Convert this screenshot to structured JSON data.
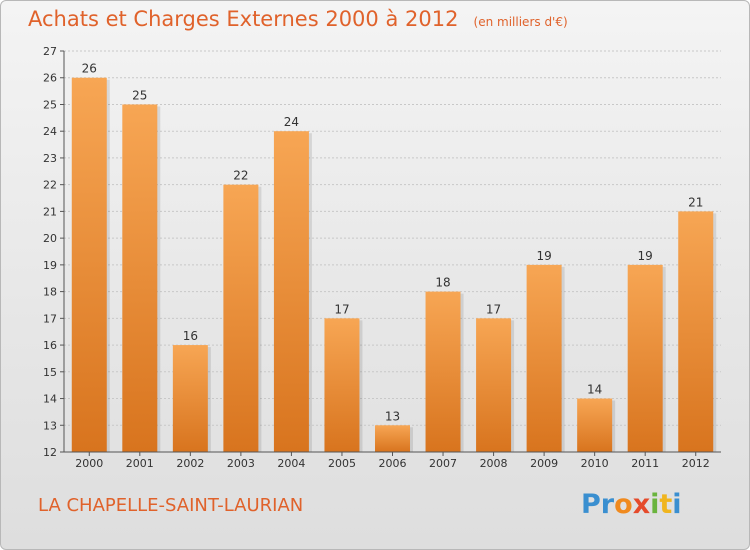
{
  "title": "Achats et Charges Externes 2000 à 2012",
  "subtitle": "(en milliers d'€)",
  "commune": "LA CHAPELLE-SAINT-LAURIAN",
  "logo": {
    "text": "Proxiti",
    "letters": [
      {
        "ch": "P",
        "color": "#3a8fd0"
      },
      {
        "ch": "r",
        "color": "#3a8fd0"
      },
      {
        "ch": "o",
        "color": "#f08a1e"
      },
      {
        "ch": "x",
        "color": "#e54a2a"
      },
      {
        "ch": "i",
        "color": "#6ab43e"
      },
      {
        "ch": "t",
        "color": "#f0b51e"
      },
      {
        "ch": "i",
        "color": "#3a8fd0"
      }
    ]
  },
  "colors": {
    "accent": "#e0622b",
    "bar_top": "#f7a654",
    "bar_bottom": "#d8741e",
    "grid": "#c8c8c8"
  },
  "chart_data": {
    "type": "bar",
    "categories": [
      "2000",
      "2001",
      "2002",
      "2003",
      "2004",
      "2005",
      "2006",
      "2007",
      "2008",
      "2009",
      "2010",
      "2011",
      "2012"
    ],
    "values": [
      26,
      25,
      16,
      22,
      24,
      17,
      13,
      18,
      17,
      19,
      14,
      19,
      21
    ],
    "ylim": [
      12,
      27
    ],
    "yticks": [
      12,
      13,
      14,
      15,
      16,
      17,
      18,
      19,
      20,
      21,
      22,
      23,
      24,
      25,
      26,
      27
    ],
    "grid": true,
    "legend": "none"
  }
}
